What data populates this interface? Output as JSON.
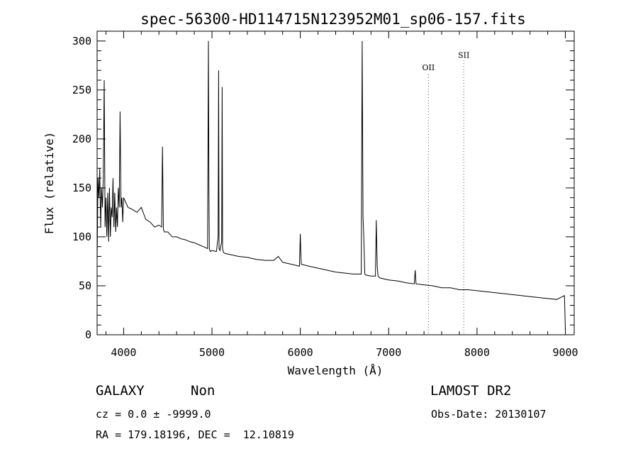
{
  "info": {
    "object_class": "GALAXY",
    "subclass": "Non",
    "survey": "LAMOST DR2",
    "cz_line": "cz = 0.0 ± -9999.0",
    "obs_date": "Obs-Date: 20130107",
    "coords_line": "RA = 179.18196, DEC =  12.10819"
  },
  "chart_data": {
    "type": "line",
    "title": "spec-56300-HD114715N123952M01_sp06-157.fits",
    "xlabel": "Wavelength (Å)",
    "ylabel": "Flux (relative)",
    "xlim": [
      3700,
      9100
    ],
    "ylim": [
      0,
      310
    ],
    "xticks": [
      4000,
      5000,
      6000,
      7000,
      8000,
      9000
    ],
    "yticks": [
      0,
      50,
      100,
      150,
      200,
      250,
      300
    ],
    "grid": false,
    "line_color": "#000000",
    "spectral_lines": [
      {
        "name": "OII",
        "x": 7450,
        "label_flux": 270
      },
      {
        "name": "SII",
        "x": 7850,
        "label_flux": 283
      }
    ],
    "series": [
      {
        "x": [
          3700,
          3710,
          3720,
          3730,
          3740,
          3750,
          3760,
          3770,
          3780,
          3790,
          3800,
          3810,
          3820,
          3830,
          3840,
          3850,
          3860,
          3870,
          3880,
          3890,
          3900,
          3910,
          3920,
          3930,
          3940,
          3950,
          3960,
          3970,
          3980,
          3990,
          4000,
          4050,
          4100,
          4150,
          4200,
          4250,
          4300,
          4350,
          4400,
          4430,
          4440,
          4450,
          4460,
          4500,
          4550,
          4600,
          4650,
          4700,
          4750,
          4800,
          4850,
          4900,
          4950,
          4960,
          4965,
          4970,
          4980,
          5000,
          5050,
          5070,
          5075,
          5080,
          5090,
          5110,
          5115,
          5120,
          5130,
          5150,
          5200,
          5300,
          5400,
          5500,
          5600,
          5700,
          5750,
          5800,
          5900,
          5990,
          6000,
          6010,
          6100,
          6200,
          6300,
          6400,
          6500,
          6600,
          6690,
          6700,
          6710,
          6720,
          6730,
          6740,
          6800,
          6850,
          6860,
          6870,
          6880,
          6900,
          7000,
          7100,
          7200,
          7290,
          7300,
          7310,
          7400,
          7500,
          7600,
          7700,
          7800,
          7900,
          8000,
          8100,
          8200,
          8300,
          8400,
          8500,
          8600,
          8700,
          8800,
          8900,
          8990,
          9000
        ],
        "values": [
          75,
          160,
          140,
          170,
          110,
          150,
          130,
          160,
          260,
          110,
          140,
          100,
          145,
          95,
          150,
          100,
          130,
          120,
          160,
          110,
          145,
          105,
          130,
          110,
          150,
          130,
          228,
          130,
          140,
          115,
          140,
          130,
          128,
          125,
          130,
          118,
          115,
          110,
          112,
          110,
          192,
          108,
          105,
          105,
          100,
          100,
          98,
          97,
          95,
          94,
          92,
          90,
          88,
          300,
          150,
          88,
          85,
          86,
          85,
          100,
          270,
          88,
          86,
          95,
          253,
          88,
          84,
          83,
          82,
          80,
          79,
          77,
          76,
          76,
          80,
          74,
          72,
          70,
          103,
          72,
          70,
          68,
          66,
          64,
          63,
          62,
          62,
          300,
          120,
          95,
          62,
          61,
          60,
          60,
          117,
          70,
          60,
          58,
          56,
          55,
          53,
          52,
          66,
          52,
          51,
          50,
          48,
          48,
          46,
          46,
          45,
          44,
          43,
          42,
          41,
          40,
          39,
          38,
          37,
          36,
          40,
          5
        ]
      }
    ]
  }
}
